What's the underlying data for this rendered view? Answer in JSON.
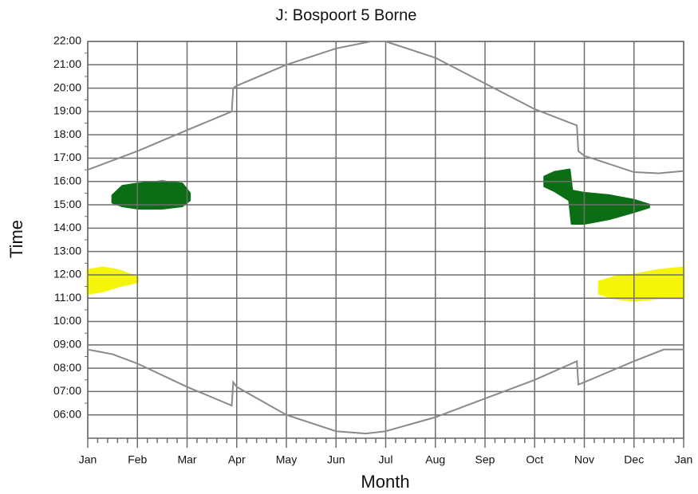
{
  "chart_data": {
    "type": "line",
    "title": "J: Bospoort 5 Borne",
    "x_label": "Month",
    "y_label": "Time",
    "grid": true,
    "xlim": [
      0,
      12
    ],
    "xticks": [
      {
        "value": 0,
        "label": "Jan"
      },
      {
        "value": 1,
        "label": "Feb"
      },
      {
        "value": 2,
        "label": "Mar"
      },
      {
        "value": 3,
        "label": "Apr"
      },
      {
        "value": 4,
        "label": "May"
      },
      {
        "value": 5,
        "label": "Jun"
      },
      {
        "value": 6,
        "label": "Jul"
      },
      {
        "value": 7,
        "label": "Aug"
      },
      {
        "value": 8,
        "label": "Sep"
      },
      {
        "value": 9,
        "label": "Oct"
      },
      {
        "value": 10,
        "label": "Nov"
      },
      {
        "value": 11,
        "label": "Dec"
      },
      {
        "value": 12,
        "label": "Jan"
      }
    ],
    "ylim": [
      5,
      22
    ],
    "yticks": [
      {
        "value": 6,
        "label": "06:00"
      },
      {
        "value": 7,
        "label": "07:00"
      },
      {
        "value": 8,
        "label": "08:00"
      },
      {
        "value": 9,
        "label": "09:00"
      },
      {
        "value": 10,
        "label": "10:00"
      },
      {
        "value": 11,
        "label": "11:00"
      },
      {
        "value": 12,
        "label": "12:00"
      },
      {
        "value": 13,
        "label": "13:00"
      },
      {
        "value": 14,
        "label": "14:00"
      },
      {
        "value": 15,
        "label": "15:00"
      },
      {
        "value": 16,
        "label": "16:00"
      },
      {
        "value": 17,
        "label": "17:00"
      },
      {
        "value": 18,
        "label": "18:00"
      },
      {
        "value": 19,
        "label": "19:00"
      },
      {
        "value": 20,
        "label": "20:00"
      },
      {
        "value": 21,
        "label": "21:00"
      },
      {
        "value": 22,
        "label": "22:00"
      }
    ],
    "series": [
      {
        "color": "#8a8a8a",
        "x": [
          0,
          1,
          2,
          2.9,
          2.93,
          3,
          4,
          5,
          5.7,
          6,
          7,
          8,
          9,
          9.85,
          9.88,
          10,
          11,
          11.5,
          12
        ],
        "values": [
          16.5,
          17.3,
          18.2,
          19.0,
          20.0,
          20.1,
          21.0,
          21.7,
          22.0,
          22.0,
          21.3,
          20.2,
          19.1,
          18.4,
          17.3,
          17.1,
          16.4,
          16.35,
          16.45
        ]
      },
      {
        "color": "#8a8a8a",
        "x": [
          0,
          0.5,
          1,
          2,
          2.9,
          2.93,
          3,
          4,
          5,
          5.6,
          6,
          7,
          8,
          9,
          9.85,
          9.88,
          10,
          11,
          11.6,
          12
        ],
        "values": [
          8.8,
          8.6,
          8.2,
          7.2,
          6.4,
          7.4,
          7.2,
          6.0,
          5.3,
          5.2,
          5.3,
          5.9,
          6.7,
          7.5,
          8.3,
          7.3,
          7.4,
          8.3,
          8.8,
          8.8
        ]
      },
      {
        "type": "range",
        "color": "#0b6e14",
        "x": [
          0.5,
          0.7,
          1,
          1.5,
          1.9,
          2.05
        ],
        "high": [
          15.4,
          15.8,
          15.9,
          16.0,
          15.9,
          15.5
        ],
        "low": [
          15.1,
          14.95,
          14.85,
          14.85,
          14.95,
          15.2
        ]
      },
      {
        "type": "range",
        "color": "#0b6e14",
        "x": [
          9.2,
          9.4,
          9.7,
          9.75,
          10,
          10.5,
          11,
          11.3
        ],
        "high": [
          16.2,
          16.4,
          16.5,
          15.6,
          15.5,
          15.4,
          15.2,
          15.0
        ],
        "low": [
          15.8,
          15.6,
          15.2,
          14.2,
          14.2,
          14.4,
          14.7,
          14.9
        ]
      },
      {
        "type": "range",
        "color": "#f5f50a",
        "x": [
          0,
          0.3,
          0.6,
          1.0
        ],
        "high": [
          12.2,
          12.3,
          12.2,
          11.9
        ],
        "low": [
          11.2,
          11.3,
          11.5,
          11.7
        ]
      },
      {
        "type": "range",
        "color": "#f5f50a",
        "x": [
          10.3,
          10.6,
          11,
          11.5,
          12
        ],
        "high": [
          11.7,
          11.9,
          12.0,
          12.2,
          12.3
        ],
        "low": [
          11.2,
          11.0,
          10.9,
          11.0,
          11.0
        ]
      }
    ]
  }
}
